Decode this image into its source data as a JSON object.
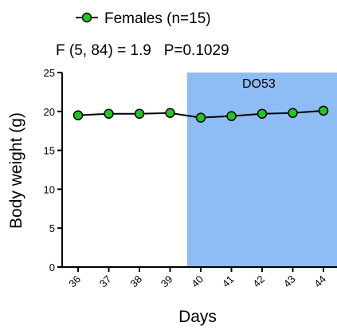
{
  "chart_data": {
    "type": "line",
    "legend": {
      "label": "Females (n=15)",
      "position": "top"
    },
    "stats": "F (5, 84) = 1.9   P=0.1029",
    "xlabel": "Days",
    "ylabel": "Body weight (g)",
    "ylim": [
      0,
      25
    ],
    "yticks": [
      0,
      5,
      10,
      15,
      20,
      25
    ],
    "categories": [
      "36",
      "37",
      "38",
      "39",
      "40",
      "41",
      "42",
      "43",
      "44"
    ],
    "series": [
      {
        "name": "Females (n=15)",
        "values": [
          19.5,
          19.7,
          19.7,
          19.8,
          19.2,
          19.4,
          19.7,
          19.8,
          20.1
        ]
      }
    ],
    "shaded_region": {
      "label": "DO53",
      "from_category": "40",
      "to_category": "44",
      "color": "#8ebcf5"
    },
    "colors": {
      "marker_fill": "#22c522",
      "line": "#000000",
      "band": "#8ebcf5"
    },
    "grid": false
  }
}
